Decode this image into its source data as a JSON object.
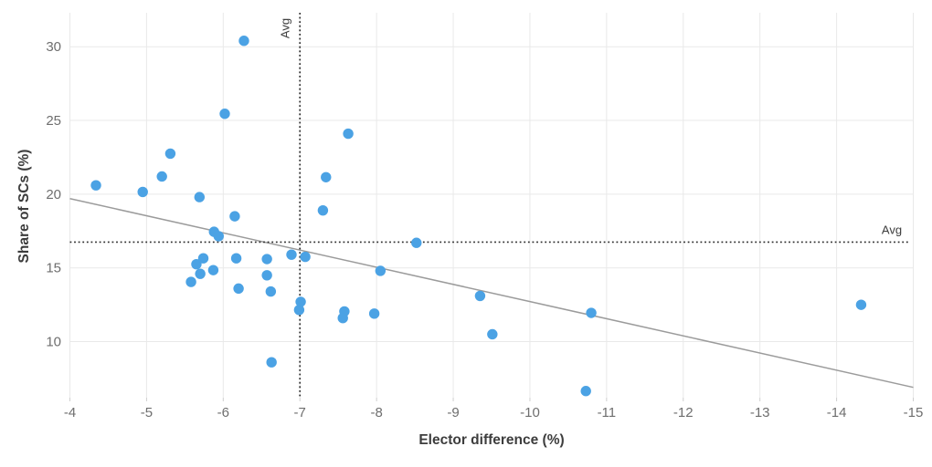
{
  "chart_data": {
    "type": "scatter",
    "title": "",
    "xlabel": "Elector difference (%)",
    "ylabel": "Share of SCs (%)",
    "x_ticks": [
      -4,
      -5,
      -6,
      -7,
      -8,
      -9,
      -10,
      -11,
      -12,
      -13,
      -14,
      -15
    ],
    "y_ticks": [
      10,
      15,
      20,
      25,
      30
    ],
    "x_range": [
      -4,
      -15
    ],
    "y_range": [
      6.2,
      32.3
    ],
    "grid": true,
    "legend_position": "none",
    "avg_x": -7.0,
    "avg_y": 16.75,
    "avg_x_label": "Avg",
    "avg_y_label": "Avg",
    "trend_line": {
      "x1": -4,
      "y1": 19.7,
      "x2": -15,
      "y2": 6.9
    },
    "points": [
      [
        -4.34,
        20.6
      ],
      [
        -4.95,
        20.15
      ],
      [
        -5.2,
        21.2
      ],
      [
        -5.31,
        22.75
      ],
      [
        -5.69,
        19.8
      ],
      [
        -6.02,
        25.45
      ],
      [
        -6.27,
        30.4
      ],
      [
        -6.15,
        18.5
      ],
      [
        -5.88,
        17.45
      ],
      [
        -5.94,
        17.15
      ],
      [
        -5.58,
        14.05
      ],
      [
        -5.65,
        15.25
      ],
      [
        -5.74,
        15.65
      ],
      [
        -5.7,
        14.6
      ],
      [
        -5.87,
        14.85
      ],
      [
        -6.17,
        15.65
      ],
      [
        -6.2,
        13.6
      ],
      [
        -6.57,
        15.6
      ],
      [
        -6.57,
        14.5
      ],
      [
        -6.62,
        13.4
      ],
      [
        -6.63,
        8.6
      ],
      [
        -6.89,
        15.9
      ],
      [
        -7.07,
        15.75
      ],
      [
        -7.01,
        12.7
      ],
      [
        -6.99,
        12.15
      ],
      [
        -7.3,
        18.9
      ],
      [
        -7.34,
        21.15
      ],
      [
        -7.63,
        24.1
      ],
      [
        -7.58,
        12.05
      ],
      [
        -7.56,
        11.6
      ],
      [
        -7.97,
        11.9
      ],
      [
        -8.05,
        14.8
      ],
      [
        -8.52,
        16.7
      ],
      [
        -9.35,
        13.1
      ],
      [
        -9.51,
        10.5
      ],
      [
        -10.8,
        11.95
      ],
      [
        -10.73,
        6.65
      ],
      [
        -14.32,
        12.5
      ]
    ],
    "colors": {
      "point": "#4BA2E4",
      "trend": "#9B9B9B",
      "avg_line": "#2B2B2B",
      "grid": "#E9E9E9",
      "tick_stub": "#CFCFCF",
      "tick_text": "#6E6E6E",
      "axis_title_text": "#3D3D3D"
    }
  }
}
